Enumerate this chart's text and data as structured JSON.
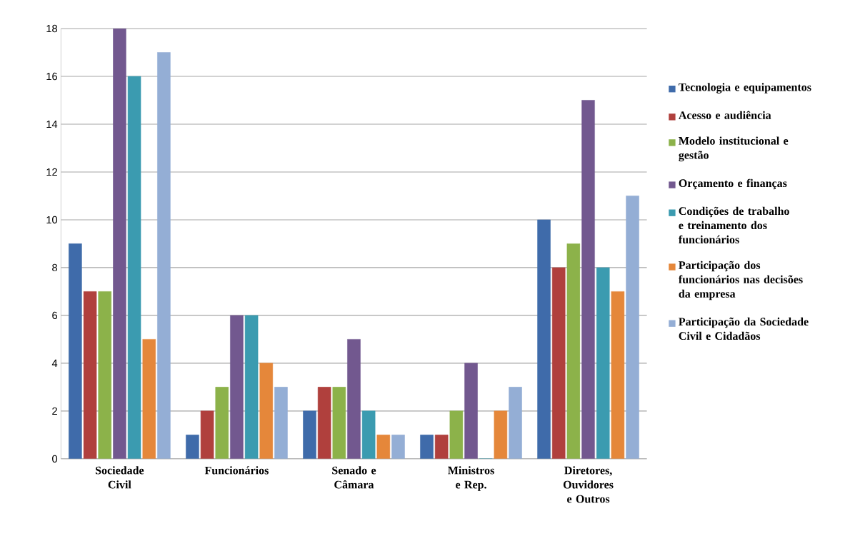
{
  "chart_data": {
    "type": "bar",
    "categories": [
      "Sociedade Civil",
      "Funcionários",
      "Senado e Câmara",
      "Ministros e Rep.",
      "Diretores, Ouvidores e Outros"
    ],
    "series": [
      {
        "name": "Tecnologia e equipamentos",
        "color": "#3f6baa",
        "values": [
          9,
          1,
          2,
          1,
          10
        ]
      },
      {
        "name": "Acesso e audiência",
        "color": "#b0403d",
        "values": [
          7,
          2,
          3,
          1,
          8
        ]
      },
      {
        "name": "Modelo institucional e gestão",
        "color": "#8cb24a",
        "values": [
          7,
          3,
          3,
          2,
          9
        ]
      },
      {
        "name": "Orçamento e finanças",
        "color": "#72588f",
        "values": [
          18,
          6,
          5,
          4,
          15
        ]
      },
      {
        "name": "Condições de trabalho e treinamento dos funcionários",
        "color": "#3b9bb0",
        "values": [
          16,
          6,
          2,
          0,
          8
        ]
      },
      {
        "name": "Participação dos funcionários nas decisões da empresa",
        "color": "#e5873a",
        "values": [
          5,
          4,
          1,
          2,
          7
        ]
      },
      {
        "name": "Participação da Sociedade Civil e Cidadãos",
        "color": "#94aed5",
        "values": [
          17,
          3,
          1,
          3,
          11
        ]
      }
    ],
    "ylim": [
      0,
      18
    ],
    "yticks": [
      0,
      2,
      4,
      6,
      8,
      10,
      12,
      14,
      16,
      18
    ],
    "grid": "y",
    "legend": "right"
  }
}
